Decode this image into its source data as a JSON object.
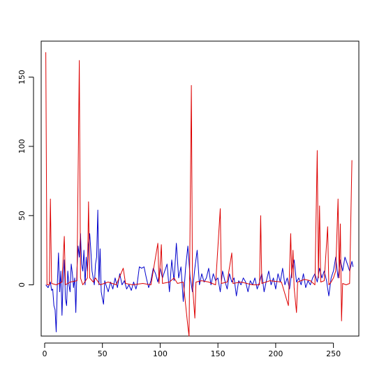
{
  "chart_data": {
    "type": "line",
    "title": "",
    "xlabel": "",
    "ylabel": "",
    "xlim": [
      -3,
      272
    ],
    "ylim": [
      -37,
      176
    ],
    "xticks": [
      0,
      50,
      100,
      150,
      200,
      250
    ],
    "yticks": [
      0,
      50,
      100,
      150
    ],
    "grid": false,
    "series": [
      {
        "color": "#0000cc",
        "points": [
          [
            1,
            0
          ],
          [
            3,
            -2
          ],
          [
            5,
            2
          ],
          [
            6,
            -4
          ],
          [
            7,
            -3
          ],
          [
            8,
            -15
          ],
          [
            9,
            -18
          ],
          [
            10,
            -34
          ],
          [
            11,
            2
          ],
          [
            12,
            23
          ],
          [
            13,
            -5
          ],
          [
            14,
            10
          ],
          [
            15,
            -22
          ],
          [
            16,
            4
          ],
          [
            17,
            18
          ],
          [
            18,
            -10
          ],
          [
            19,
            -15
          ],
          [
            20,
            10
          ],
          [
            21,
            0
          ],
          [
            22,
            -5
          ],
          [
            23,
            15
          ],
          [
            24,
            8
          ],
          [
            25,
            -2
          ],
          [
            26,
            5
          ],
          [
            27,
            -20
          ],
          [
            28,
            12
          ],
          [
            29,
            28
          ],
          [
            30,
            20
          ],
          [
            31,
            37
          ],
          [
            32,
            15
          ],
          [
            33,
            10
          ],
          [
            34,
            25
          ],
          [
            35,
            0
          ],
          [
            36,
            20
          ],
          [
            37,
            10
          ],
          [
            38,
            28
          ],
          [
            39,
            37
          ],
          [
            40,
            25
          ],
          [
            41,
            10
          ],
          [
            42,
            5
          ],
          [
            43,
            0
          ],
          [
            44,
            15
          ],
          [
            45,
            20
          ],
          [
            46,
            54
          ],
          [
            47,
            0
          ],
          [
            48,
            26
          ],
          [
            49,
            -5
          ],
          [
            50,
            -10
          ],
          [
            51,
            -14
          ],
          [
            52,
            3
          ],
          [
            53,
            0
          ],
          [
            55,
            -5
          ],
          [
            57,
            2
          ],
          [
            59,
            -3
          ],
          [
            61,
            5
          ],
          [
            63,
            -2
          ],
          [
            65,
            8
          ],
          [
            67,
            0
          ],
          [
            69,
            3
          ],
          [
            71,
            -3
          ],
          [
            73,
            0
          ],
          [
            75,
            -4
          ],
          [
            77,
            2
          ],
          [
            79,
            -3
          ],
          [
            80,
            0
          ],
          [
            82,
            13
          ],
          [
            84,
            12
          ],
          [
            86,
            13
          ],
          [
            88,
            5
          ],
          [
            90,
            -2
          ],
          [
            92,
            3
          ],
          [
            94,
            12
          ],
          [
            96,
            8
          ],
          [
            98,
            2
          ],
          [
            100,
            12
          ],
          [
            102,
            5
          ],
          [
            104,
            10
          ],
          [
            106,
            15
          ],
          [
            108,
            -5
          ],
          [
            110,
            18
          ],
          [
            112,
            3
          ],
          [
            114,
            30
          ],
          [
            116,
            5
          ],
          [
            118,
            13
          ],
          [
            120,
            -12
          ],
          [
            122,
            12
          ],
          [
            124,
            28
          ],
          [
            126,
            5
          ],
          [
            128,
            -5
          ],
          [
            130,
            12
          ],
          [
            132,
            25
          ],
          [
            134,
            0
          ],
          [
            136,
            8
          ],
          [
            138,
            2
          ],
          [
            140,
            5
          ],
          [
            142,
            12
          ],
          [
            144,
            0
          ],
          [
            146,
            8
          ],
          [
            148,
            3
          ],
          [
            150,
            5
          ],
          [
            152,
            -5
          ],
          [
            154,
            10
          ],
          [
            156,
            3
          ],
          [
            158,
            -3
          ],
          [
            160,
            8
          ],
          [
            162,
            2
          ],
          [
            164,
            5
          ],
          [
            166,
            -8
          ],
          [
            168,
            3
          ],
          [
            170,
            0
          ],
          [
            172,
            5
          ],
          [
            174,
            2
          ],
          [
            176,
            -5
          ],
          [
            178,
            3
          ],
          [
            180,
            0
          ],
          [
            182,
            5
          ],
          [
            184,
            -3
          ],
          [
            186,
            2
          ],
          [
            188,
            8
          ],
          [
            190,
            -5
          ],
          [
            192,
            3
          ],
          [
            194,
            10
          ],
          [
            196,
            0
          ],
          [
            198,
            5
          ],
          [
            200,
            -3
          ],
          [
            202,
            8
          ],
          [
            204,
            2
          ],
          [
            206,
            12
          ],
          [
            208,
            0
          ],
          [
            210,
            5
          ],
          [
            212,
            -3
          ],
          [
            214,
            10
          ],
          [
            216,
            18
          ],
          [
            218,
            2
          ],
          [
            220,
            5
          ],
          [
            222,
            0
          ],
          [
            224,
            8
          ],
          [
            226,
            -2
          ],
          [
            228,
            3
          ],
          [
            230,
            0
          ],
          [
            232,
            5
          ],
          [
            234,
            8
          ],
          [
            236,
            2
          ],
          [
            238,
            12
          ],
          [
            240,
            5
          ],
          [
            242,
            10
          ],
          [
            244,
            3
          ],
          [
            246,
            -8
          ],
          [
            248,
            5
          ],
          [
            250,
            10
          ],
          [
            252,
            20
          ],
          [
            254,
            5
          ],
          [
            256,
            18
          ],
          [
            258,
            10
          ],
          [
            260,
            20
          ],
          [
            262,
            15
          ],
          [
            264,
            10
          ],
          [
            266,
            17
          ],
          [
            267,
            13
          ]
        ]
      },
      {
        "color": "#dd0000",
        "points": [
          [
            1,
            168
          ],
          [
            2,
            0
          ],
          [
            4,
            0
          ],
          [
            5,
            62
          ],
          [
            6,
            1
          ],
          [
            10,
            0
          ],
          [
            15,
            2
          ],
          [
            17,
            35
          ],
          [
            18,
            0
          ],
          [
            22,
            2
          ],
          [
            28,
            3
          ],
          [
            30,
            162
          ],
          [
            31,
            5
          ],
          [
            33,
            0
          ],
          [
            37,
            5
          ],
          [
            38,
            60
          ],
          [
            39,
            5
          ],
          [
            42,
            2
          ],
          [
            44,
            5
          ],
          [
            48,
            0
          ],
          [
            55,
            2
          ],
          [
            62,
            0
          ],
          [
            68,
            12
          ],
          [
            70,
            1
          ],
          [
            76,
            0
          ],
          [
            85,
            1
          ],
          [
            92,
            0
          ],
          [
            98,
            30
          ],
          [
            99,
            1
          ],
          [
            101,
            29
          ],
          [
            102,
            1
          ],
          [
            108,
            2
          ],
          [
            112,
            5
          ],
          [
            115,
            1
          ],
          [
            120,
            2
          ],
          [
            124,
            -30
          ],
          [
            125,
            -37
          ],
          [
            127,
            144
          ],
          [
            128,
            0
          ],
          [
            130,
            -24
          ],
          [
            131,
            2
          ],
          [
            136,
            3
          ],
          [
            142,
            2
          ],
          [
            148,
            0
          ],
          [
            152,
            55
          ],
          [
            153,
            1
          ],
          [
            158,
            2
          ],
          [
            162,
            23
          ],
          [
            163,
            1
          ],
          [
            170,
            2
          ],
          [
            180,
            0
          ],
          [
            186,
            0
          ],
          [
            187,
            50
          ],
          [
            188,
            1
          ],
          [
            195,
            3
          ],
          [
            205,
            2
          ],
          [
            211,
            -15
          ],
          [
            213,
            37
          ],
          [
            214,
            5
          ],
          [
            215,
            25
          ],
          [
            216,
            -2
          ],
          [
            218,
            -20
          ],
          [
            219,
            2
          ],
          [
            225,
            4
          ],
          [
            230,
            3
          ],
          [
            234,
            0
          ],
          [
            236,
            97
          ],
          [
            237,
            5
          ],
          [
            238,
            57
          ],
          [
            239,
            2
          ],
          [
            242,
            3
          ],
          [
            245,
            42
          ],
          [
            246,
            0
          ],
          [
            248,
            2
          ],
          [
            250,
            5
          ],
          [
            252,
            10
          ],
          [
            254,
            62
          ],
          [
            255,
            5
          ],
          [
            256,
            44
          ],
          [
            257,
            -26
          ],
          [
            258,
            1
          ],
          [
            261,
            0
          ],
          [
            264,
            1
          ],
          [
            266,
            90
          ]
        ]
      }
    ]
  }
}
